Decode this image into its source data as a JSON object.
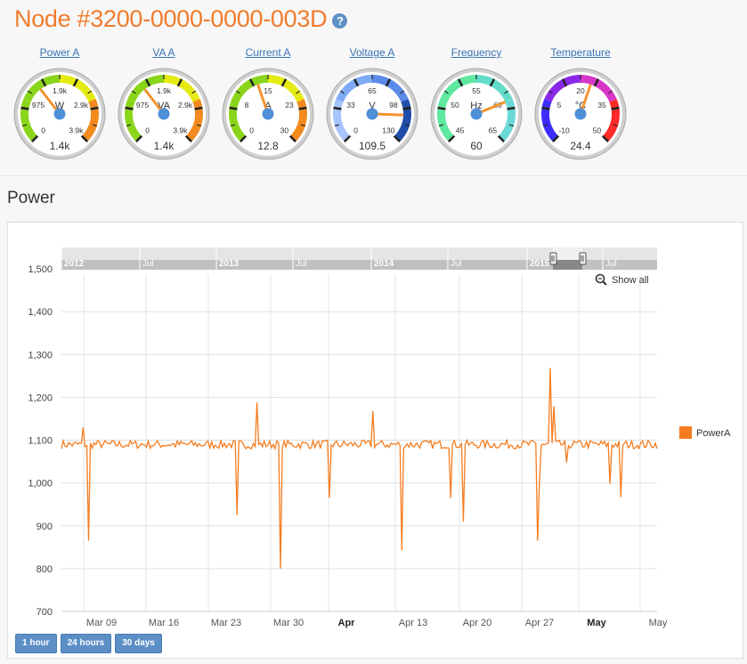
{
  "node": {
    "title": "Node #3200-0000-0000-003D",
    "help_icon": "?"
  },
  "gauges": [
    {
      "label": "Power A",
      "unit": "W",
      "min": "0",
      "t1": "975",
      "t2": "1.9k",
      "t3": "2.9k",
      "max": "3.9k",
      "value": "1.4k",
      "needle_fraction": 0.36,
      "bands": [
        "#8ad51a",
        "#8ad51a",
        "#e5ea12",
        "#f28a1e"
      ]
    },
    {
      "label": "VA A",
      "unit": "VA",
      "min": "0",
      "t1": "975",
      "t2": "1.9k",
      "t3": "2.9k",
      "max": "3.9k",
      "value": "1.4k",
      "needle_fraction": 0.36,
      "bands": [
        "#8ad51a",
        "#8ad51a",
        "#e5ea12",
        "#f28a1e"
      ]
    },
    {
      "label": "Current A",
      "unit": "A",
      "min": "0",
      "t1": "8",
      "t2": "15",
      "t3": "23",
      "max": "30",
      "value": "12.8",
      "needle_fraction": 0.43,
      "bands": [
        "#8ad51a",
        "#8ad51a",
        "#e5ea12",
        "#f28a1e"
      ]
    },
    {
      "label": "Voltage A",
      "unit": "V",
      "min": "0",
      "t1": "33",
      "t2": "65",
      "t3": "98",
      "max": "130",
      "value": "109.5",
      "needle_fraction": 0.84,
      "bands": [
        "#a8c4ff",
        "#7faaf5",
        "#5b8ae8",
        "#1f4ea8"
      ]
    },
    {
      "label": "Frequency",
      "unit": "Hz",
      "min": "45",
      "t1": "50",
      "t2": "55",
      "t3": "60",
      "max": "65",
      "value": "60",
      "needle_fraction": 0.75,
      "bands": [
        "#5fe8a0",
        "#5fe8a0",
        "#62dcc8",
        "#6ad8d6"
      ]
    },
    {
      "label": "Temperature",
      "unit": "°C",
      "min": "-10",
      "t1": "5",
      "t2": "20",
      "t3": "35",
      "max": "50",
      "value": "24.4",
      "needle_fraction": 0.57,
      "bands": [
        "#3d2cff",
        "#8a28e8",
        "#d836c8",
        "#ff2a2a"
      ]
    }
  ],
  "section": {
    "title": "Power"
  },
  "navigator": {
    "labels": [
      "2012",
      "Jul",
      "2013",
      "Jul",
      "2014",
      "Jul",
      "2015",
      "Jul"
    ],
    "bold": [
      true,
      false,
      true,
      false,
      true,
      false,
      true,
      false
    ]
  },
  "reset_zoom": {
    "label": "Show all",
    "icon": "zoom-icon"
  },
  "chart_data": {
    "type": "line",
    "series": [
      {
        "name": "PowerA",
        "color": "#f57c1f"
      }
    ],
    "ylim": [
      700,
      1500
    ],
    "yticks": [
      "1,500",
      "1,400",
      "1,300",
      "1,200",
      "1,100",
      "1,000",
      "900",
      "800",
      "700"
    ],
    "xticks": [
      "Mar 09",
      "Mar 16",
      "Mar 23",
      "Mar 30",
      "Apr",
      "Apr 13",
      "Apr 20",
      "Apr 27",
      "May",
      "May"
    ],
    "xticks_bold": [
      false,
      false,
      false,
      false,
      true,
      false,
      false,
      false,
      true,
      false
    ],
    "baseline": 1090,
    "spikes_x_fraction": [
      0.035,
      0.047,
      0.295,
      0.328,
      0.367,
      0.449,
      0.522,
      0.571,
      0.655,
      0.674,
      0.8,
      0.803,
      0.82,
      0.827,
      0.849,
      0.921,
      0.94
    ],
    "spikes_y": [
      1130,
      865,
      925,
      1188,
      800,
      965,
      1168,
      843,
      965,
      910,
      865,
      998,
      1268,
      1180,
      1048,
      998,
      967
    ]
  },
  "time_range_buttons": [
    "1 hour",
    "24 hours",
    "30 days"
  ]
}
